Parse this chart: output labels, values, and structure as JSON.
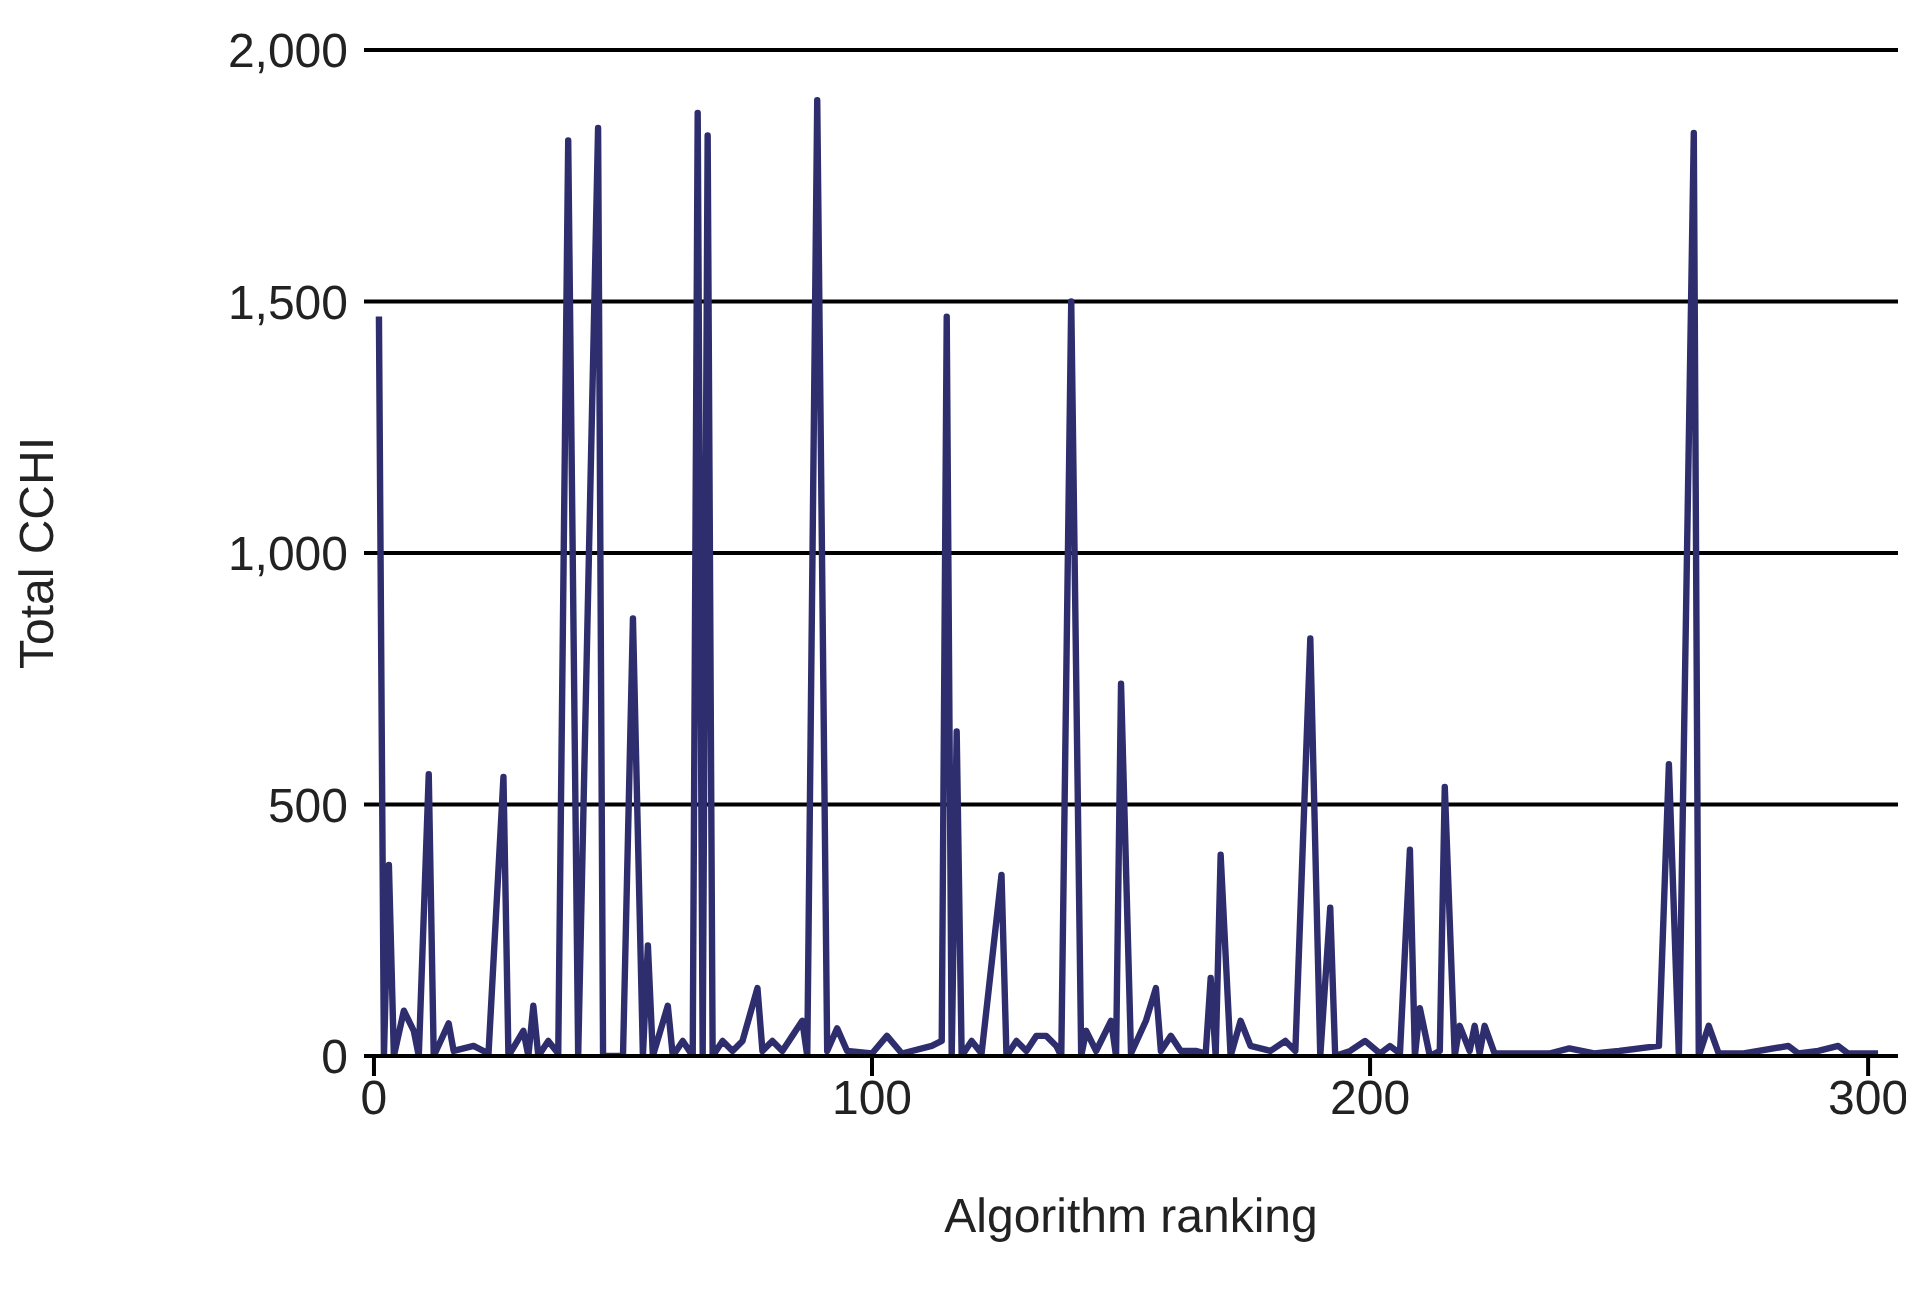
{
  "chart_data": {
    "type": "line",
    "xlabel": "Algorithm ranking",
    "ylabel": "Total CCHI",
    "xlim": [
      -2,
      306
    ],
    "xticks": [
      0,
      100,
      200,
      300
    ],
    "ylim": [
      0,
      2000
    ],
    "yticks": [
      {
        "value": 0,
        "label": "0"
      },
      {
        "value": 500,
        "label": "500"
      },
      {
        "value": 1000,
        "label": "1,000"
      },
      {
        "value": 1500,
        "label": "1,500"
      },
      {
        "value": 2000,
        "label": "2,000"
      }
    ],
    "grid": "y",
    "marker": "none",
    "line_style": "solid",
    "series": [
      {
        "color": "#2e2d6e",
        "x": [
          1,
          2,
          3,
          4,
          6,
          8,
          9,
          11,
          12,
          15,
          16,
          20,
          23,
          26,
          27,
          30,
          31,
          32,
          33,
          35,
          37,
          39,
          41,
          45,
          46,
          50,
          52,
          54,
          55,
          56,
          59,
          60,
          62,
          64,
          65,
          66,
          67,
          68,
          70,
          72,
          74,
          77,
          78,
          80,
          82,
          84,
          86,
          87,
          89,
          91,
          93,
          95,
          100,
          103,
          106,
          112,
          114,
          115,
          116,
          117,
          118,
          120,
          122,
          126,
          127,
          129,
          131,
          133,
          135,
          137,
          138,
          140,
          142,
          143,
          145,
          148,
          149,
          150,
          152,
          155,
          157,
          158,
          160,
          162,
          165,
          167,
          168,
          169,
          170,
          172,
          174,
          176,
          180,
          183,
          185,
          188,
          190,
          192,
          193,
          196,
          199,
          202,
          204,
          206,
          208,
          209,
          210,
          212,
          214,
          215,
          217,
          218,
          220,
          221,
          222,
          223,
          225,
          230,
          236,
          240,
          245,
          250,
          258,
          260,
          262,
          265,
          266,
          268,
          270,
          275,
          284,
          286,
          290,
          294,
          296,
          302
        ],
        "values": [
          1470,
          0,
          380,
          0,
          90,
          50,
          0,
          560,
          0,
          65,
          10,
          20,
          5,
          555,
          0,
          50,
          0,
          100,
          0,
          30,
          5,
          1820,
          0,
          1845,
          0,
          0,
          870,
          0,
          220,
          0,
          100,
          0,
          30,
          0,
          1875,
          0,
          1830,
          0,
          30,
          10,
          30,
          135,
          10,
          30,
          10,
          40,
          70,
          0,
          1900,
          10,
          55,
          10,
          5,
          40,
          5,
          20,
          30,
          1470,
          0,
          645,
          0,
          30,
          5,
          360,
          0,
          30,
          10,
          40,
          40,
          20,
          0,
          1500,
          0,
          50,
          10,
          70,
          0,
          740,
          5,
          70,
          135,
          10,
          40,
          10,
          10,
          5,
          155,
          0,
          400,
          0,
          70,
          20,
          10,
          30,
          10,
          830,
          0,
          295,
          0,
          10,
          30,
          5,
          20,
          5,
          410,
          0,
          95,
          0,
          10,
          535,
          0,
          60,
          10,
          60,
          5,
          60,
          5,
          5,
          5,
          15,
          5,
          10,
          20,
          580,
          0,
          1835,
          0,
          60,
          5,
          5,
          20,
          5,
          10,
          20,
          5,
          5
        ]
      }
    ]
  }
}
